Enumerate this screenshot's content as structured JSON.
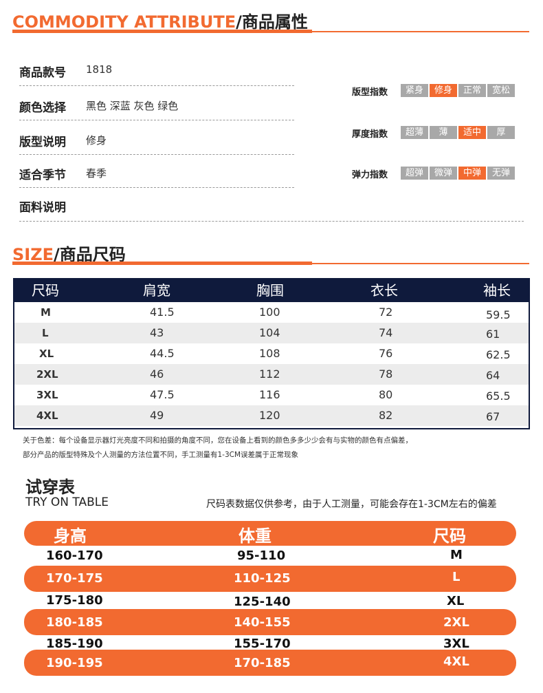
{
  "commodity": {
    "title_en": "COMMODITY ATTRIBUTE",
    "title_cn": "/商品属性",
    "rows": [
      {
        "label": "商品款号",
        "value": "1818"
      },
      {
        "label": "颜色选择",
        "value": "黑色 深蓝 灰色 绿色"
      },
      {
        "label": "版型说明",
        "value": "修身"
      },
      {
        "label": "适合季节",
        "value": "春季"
      },
      {
        "label": "面料说明",
        "value": ""
      }
    ],
    "indices": [
      {
        "label": "版型指数",
        "options": [
          "紧身",
          "修身",
          "正常",
          "宽松"
        ],
        "selected": 1
      },
      {
        "label": "厚度指数",
        "options": [
          "超薄",
          "薄",
          "适中",
          "厚"
        ],
        "selected": 2
      },
      {
        "label": "弹力指数",
        "options": [
          "超弹",
          "微弹",
          "中弹",
          "无弹"
        ],
        "selected": 2
      }
    ]
  },
  "size": {
    "title_en": "SIZE",
    "title_cn": "/商品尺码",
    "headers": [
      "尺码",
      "肩宽",
      "胸围",
      "衣长",
      "袖长"
    ],
    "rows": [
      [
        "M",
        "41.5",
        "100",
        "72",
        "59.5"
      ],
      [
        "L",
        "43",
        "104",
        "74",
        "61"
      ],
      [
        "XL",
        "44.5",
        "108",
        "76",
        "62.5"
      ],
      [
        "2XL",
        "46",
        "112",
        "78",
        "64"
      ],
      [
        "3XL",
        "47.5",
        "116",
        "80",
        "65.5"
      ],
      [
        "4XL",
        "49",
        "120",
        "82",
        "67"
      ]
    ],
    "note_line1": "关于色差：每个设备显示器灯光亮度不同和拍摄的角度不同，您在设备上看到的颜色多多少少会有与实物的颜色有点偏差，",
    "note_line2": "部分产品的版型特殊及个人测量的方法位置不同，手工测量有1-3CM误差属于正常现象"
  },
  "try_on": {
    "title_cn": "试穿表",
    "title_en": "TRY ON TABLE",
    "note": "尺码表数据仅供参考，由于人工测量，可能会存在1-3CM左右的偏差",
    "headers": [
      "身高",
      "体重",
      "尺码"
    ],
    "rows": [
      [
        "160-170",
        "95-110",
        "M"
      ],
      [
        "170-175",
        "110-125",
        "L"
      ],
      [
        "175-180",
        "125-140",
        "XL"
      ],
      [
        "180-185",
        "140-155",
        "2XL"
      ],
      [
        "185-190",
        "155-170",
        "3XL"
      ],
      [
        "190-195",
        "170-185",
        "4XL"
      ]
    ]
  },
  "colors": {
    "accent": "#f26a30",
    "navy": "#0f1a3c",
    "inactive": "#a8a8a8"
  }
}
